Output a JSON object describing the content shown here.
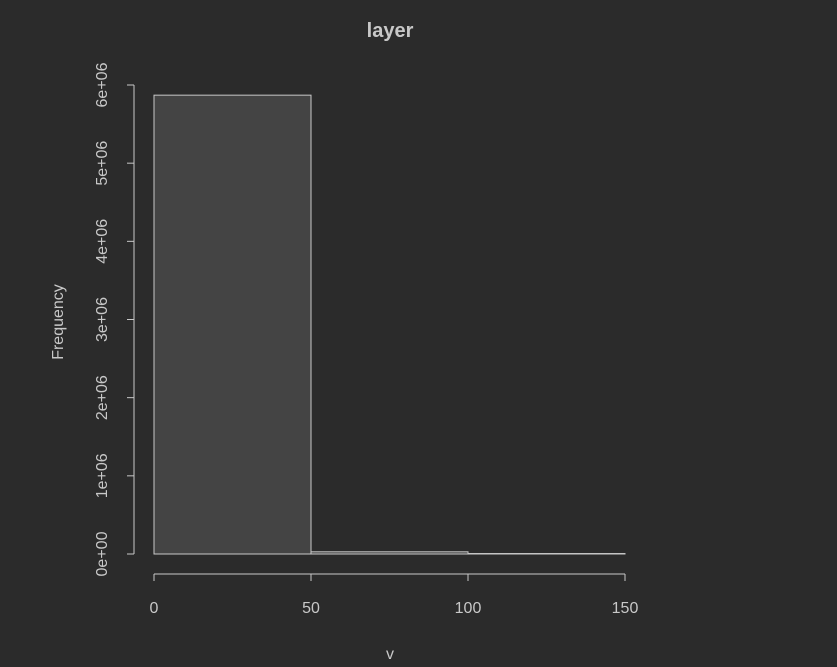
{
  "chart_data": {
    "type": "bar",
    "title": "layer",
    "xlabel": "v",
    "ylabel": "Frequency",
    "bins": [
      {
        "from": 0,
        "to": 50,
        "count": 5870000
      },
      {
        "from": 50,
        "to": 100,
        "count": 28000
      },
      {
        "from": 100,
        "to": 150,
        "count": 6000
      }
    ],
    "x_ticks": [
      {
        "value": 0,
        "label": "0"
      },
      {
        "value": 50,
        "label": "50"
      },
      {
        "value": 100,
        "label": "100"
      },
      {
        "value": 150,
        "label": "150"
      }
    ],
    "y_ticks": [
      {
        "value": 0,
        "label": "0e+00"
      },
      {
        "value": 1000000,
        "label": "1e+06"
      },
      {
        "value": 2000000,
        "label": "2e+06"
      },
      {
        "value": 3000000,
        "label": "3e+06"
      },
      {
        "value": 4000000,
        "label": "4e+06"
      },
      {
        "value": 5000000,
        "label": "5e+06"
      },
      {
        "value": 6000000,
        "label": "6e+06"
      }
    ],
    "xlim": [
      0,
      150
    ],
    "ylim": [
      0,
      6000000
    ],
    "grid": false,
    "colors": {
      "background": "#2b2b2b",
      "bar_fill": "#444444",
      "bar_stroke": "#c8c8c8",
      "axis": "#c8c8c8",
      "text": "#c8c8c8"
    }
  }
}
